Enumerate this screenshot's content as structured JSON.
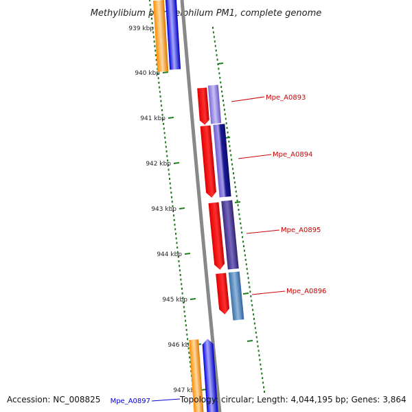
{
  "title": "Methylibium petroleiphilum PM1, complete genome",
  "colors": {
    "backbone": "#888888",
    "ruler": "#1f7a1f",
    "label_red": "#cc0000",
    "label_blue": "#0000cc"
  },
  "ticks": [
    "939 kbp",
    "940 kbp",
    "941 kbp",
    "942 kbp",
    "943 kbp",
    "944 kbp",
    "945 kbp",
    "946 kbp",
    "947 kbp"
  ],
  "genes": [
    {
      "label": "Mpe_A0893",
      "color": "#cc0000"
    },
    {
      "label": "Mpe_A0894",
      "color": "#cc0000"
    },
    {
      "label": "Mpe_A0895",
      "color": "#cc0000"
    },
    {
      "label": "Mpe_A0896",
      "color": "#cc0000"
    },
    {
      "label": "Mpe_A0897",
      "color": "#0000cc"
    }
  ],
  "footer": {
    "accession": "Accession: NC_008825",
    "summary": "Topology: circular; Length: 4,044,195 bp; Genes: 3,864"
  }
}
